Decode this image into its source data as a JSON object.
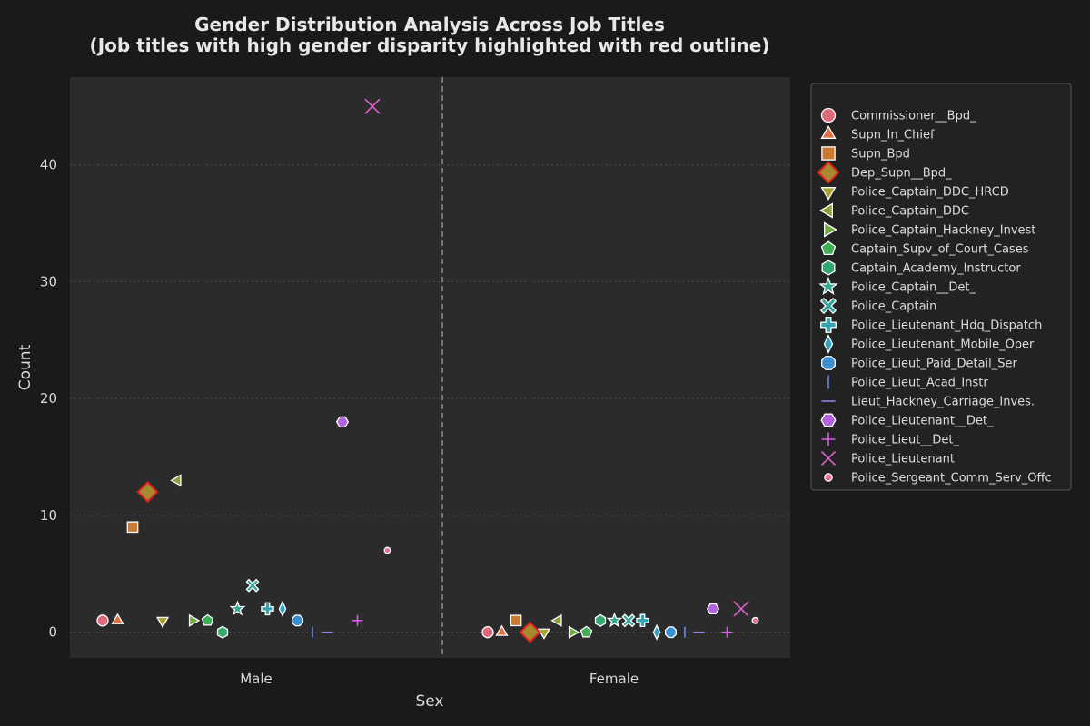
{
  "chart_data": {
    "type": "scatter",
    "title": "Gender Distribution Analysis Across Job Titles",
    "subtitle": "(Job titles with high gender disparity highlighted with red outline)",
    "xlabel": "Sex",
    "ylabel": "Count",
    "categories": [
      "Male",
      "Female"
    ],
    "ylim": [
      -2.2,
      47.5
    ],
    "yticks": [
      "0",
      "10",
      "20",
      "30",
      "40"
    ],
    "grid": "horizontal dotted",
    "legend_position": "outside-right",
    "legend_title": "Job Title",
    "series": [
      {
        "name": "Commissioner__Bpd_",
        "marker": "circle",
        "color": "#e06a7a",
        "highlight": false,
        "values": [
          1,
          0
        ]
      },
      {
        "name": "Supn_In_Chief",
        "marker": "triangle-up",
        "color": "#e0703f",
        "highlight": false,
        "values": [
          1,
          0
        ]
      },
      {
        "name": "Supn_Bpd",
        "marker": "square",
        "color": "#cc7a30",
        "highlight": false,
        "values": [
          9,
          1
        ]
      },
      {
        "name": "Dep_Supn__Bpd_",
        "marker": "diamond",
        "color": "#a88a2e",
        "highlight": true,
        "values": [
          12,
          0
        ]
      },
      {
        "name": "Police_Captain_DDC_HRCD",
        "marker": "triangle-down",
        "color": "#a8a230",
        "highlight": false,
        "values": [
          1,
          0
        ]
      },
      {
        "name": "Police_Captain_DDC",
        "marker": "triangle-left",
        "color": "#8ca038",
        "highlight": false,
        "values": [
          13,
          1
        ]
      },
      {
        "name": "Police_Captain_Hackney_Invest",
        "marker": "triangle-right",
        "color": "#72aa3e",
        "highlight": false,
        "values": [
          1,
          0
        ]
      },
      {
        "name": "Captain_Supv_of_Court_Cases",
        "marker": "pentagon",
        "color": "#3fae55",
        "highlight": false,
        "values": [
          1,
          0
        ]
      },
      {
        "name": "Captain_Academy_Instructor",
        "marker": "hexagon",
        "color": "#33a86e",
        "highlight": false,
        "values": [
          0,
          1
        ]
      },
      {
        "name": "Police_Captain__Det_",
        "marker": "star",
        "color": "#35a890",
        "highlight": false,
        "values": [
          2,
          1
        ]
      },
      {
        "name": "Police_Captain",
        "marker": "x-filled",
        "color": "#33a59c",
        "highlight": false,
        "values": [
          4,
          1
        ]
      },
      {
        "name": "Police_Lieutenant_Hdq_Dispatch",
        "marker": "plus-filled",
        "color": "#35a3ad",
        "highlight": false,
        "values": [
          2,
          1
        ]
      },
      {
        "name": "Police_Lieutenant_Mobile_Oper",
        "marker": "thin-diamond",
        "color": "#38a0c4",
        "highlight": false,
        "values": [
          2,
          0
        ]
      },
      {
        "name": "Police_Lieut_Paid_Detail_Ser",
        "marker": "octagon",
        "color": "#3a8fd0",
        "highlight": false,
        "values": [
          1,
          0
        ]
      },
      {
        "name": "Police_Lieut_Acad_Instr",
        "marker": "vline",
        "color": "#6f86e0",
        "highlight": false,
        "values": [
          0,
          0
        ]
      },
      {
        "name": "Lieut_Hackney_Carriage_Inves.",
        "marker": "hline",
        "color": "#9a7ee6",
        "highlight": false,
        "values": [
          0,
          0
        ]
      },
      {
        "name": "Police_Lieutenant__Det_",
        "marker": "hexagon2",
        "color": "#b462e0",
        "highlight": false,
        "values": [
          18,
          2
        ]
      },
      {
        "name": "Police_Lieut__Det_",
        "marker": "plus",
        "color": "#d25ee0",
        "highlight": false,
        "values": [
          1,
          0
        ]
      },
      {
        "name": "Police_Lieutenant",
        "marker": "x",
        "color": "#e05ec8",
        "highlight": false,
        "values": [
          45,
          2
        ]
      },
      {
        "name": "Police_Sergeant_Comm_Serv_Offc",
        "marker": "point",
        "color": "#e8709a",
        "highlight": false,
        "values": [
          7,
          1
        ]
      }
    ]
  }
}
